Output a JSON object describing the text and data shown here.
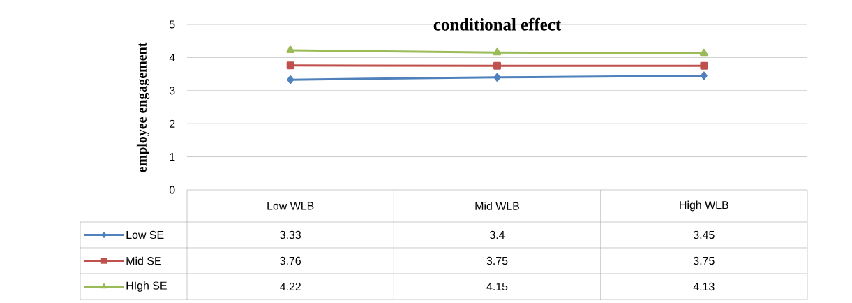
{
  "chart_data": {
    "type": "line",
    "title": "conditional effect",
    "ylabel": "employee engagement",
    "categories": [
      "Low WLB",
      "Mid WLB",
      "High WLB"
    ],
    "series": [
      {
        "name": "Low SE",
        "color": "#4f81bd",
        "marker": "diamond",
        "values": [
          3.33,
          3.4,
          3.45
        ]
      },
      {
        "name": "Mid SE",
        "color": "#c0504d",
        "marker": "square",
        "values": [
          3.76,
          3.75,
          3.75
        ]
      },
      {
        "name": "HIgh SE",
        "color": "#9bbb59",
        "marker": "triangle",
        "values": [
          4.22,
          4.15,
          4.13
        ]
      }
    ],
    "ylim": [
      0,
      5
    ],
    "yticks": [
      0,
      1,
      2,
      3,
      4,
      5
    ],
    "grid": "y",
    "legend": "bottom",
    "data_labels": true
  }
}
